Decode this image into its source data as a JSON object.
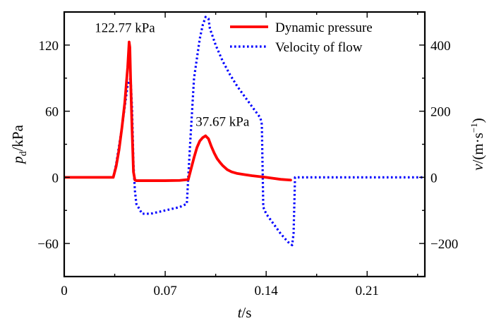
{
  "chart_data": {
    "type": "line",
    "xlabel": {
      "italic": "t",
      "rest": "/s"
    },
    "ylabel_left": {
      "italic": "p",
      "sub": "d",
      "rest": "/kPa"
    },
    "ylabel_right": {
      "italic": "v",
      "rest": "/(m·s",
      "sup": "−1",
      "tail": ")"
    },
    "xlim": [
      0,
      0.25
    ],
    "ylim_left": [
      -90,
      150
    ],
    "ylim_right": [
      -300,
      500
    ],
    "x_ticks": [
      0,
      0.07,
      0.14,
      0.21
    ],
    "x_tick_labels": [
      "0",
      "0.07",
      "0.14",
      "0.21"
    ],
    "y_left_ticks": [
      -60,
      0,
      60,
      120
    ],
    "y_left_tick_labels": [
      "−60",
      "0",
      "60",
      "120"
    ],
    "y_right_ticks": [
      -200,
      0,
      200,
      400
    ],
    "y_right_tick_labels": [
      "−200",
      "0",
      "200",
      "400"
    ],
    "legend_position": "top-right",
    "series": [
      {
        "name": "Dynamic pressure",
        "axis": "left",
        "color": "#ff0000",
        "style": "solid",
        "x": [
          0,
          0.034,
          0.036,
          0.038,
          0.04,
          0.042,
          0.044,
          0.045,
          0.0455,
          0.046,
          0.047,
          0.048,
          0.049,
          0.05,
          0.06,
          0.07,
          0.08,
          0.086,
          0.088,
          0.09,
          0.092,
          0.094,
          0.096,
          0.098,
          0.1,
          0.102,
          0.104,
          0.106,
          0.108,
          0.11,
          0.113,
          0.116,
          0.12,
          0.125,
          0.13,
          0.14,
          0.15,
          0.157
        ],
        "y": [
          0,
          0,
          10,
          25,
          45,
          68,
          100,
          122.77,
          118,
          90,
          45,
          5,
          -2.5,
          -3,
          -3,
          -3,
          -2.8,
          -2,
          8,
          18,
          27,
          33,
          36,
          37.67,
          35,
          28,
          22,
          17,
          13.5,
          10.5,
          7,
          5,
          3.5,
          2.5,
          1.5,
          0,
          -1.8,
          -2.5
        ]
      },
      {
        "name": "Velocity of flow",
        "axis": "right",
        "color": "#0000ff",
        "style": "dotted",
        "x": [
          0,
          0.034,
          0.036,
          0.04,
          0.044,
          0.046,
          0.047,
          0.048,
          0.049,
          0.05,
          0.054,
          0.06,
          0.07,
          0.08,
          0.085,
          0.087,
          0.09,
          0.094,
          0.096,
          0.098,
          0.1,
          0.101,
          0.105,
          0.11,
          0.115,
          0.12,
          0.125,
          0.13,
          0.136,
          0.137,
          0.138,
          0.14,
          0.145,
          0.15,
          0.155,
          0.158,
          0.159,
          0.16,
          0.2,
          0.25
        ],
        "y": [
          0,
          0,
          40,
          150,
          280,
          300,
          210,
          40,
          -40,
          -80,
          -110,
          -110,
          -100,
          -90,
          -80,
          80,
          300,
          420,
          460,
          485,
          480,
          450,
          400,
          350,
          310,
          275,
          245,
          215,
          180,
          160,
          -90,
          -110,
          -140,
          -170,
          -195,
          -205,
          -170,
          0,
          0,
          0
        ]
      }
    ],
    "annotations": [
      {
        "text": "122.77 kPa",
        "x": 0.045,
        "y": 122.77,
        "axis": "left"
      },
      {
        "text": "37.67 kPa",
        "x": 0.098,
        "y": 37.67,
        "axis": "left"
      }
    ]
  }
}
